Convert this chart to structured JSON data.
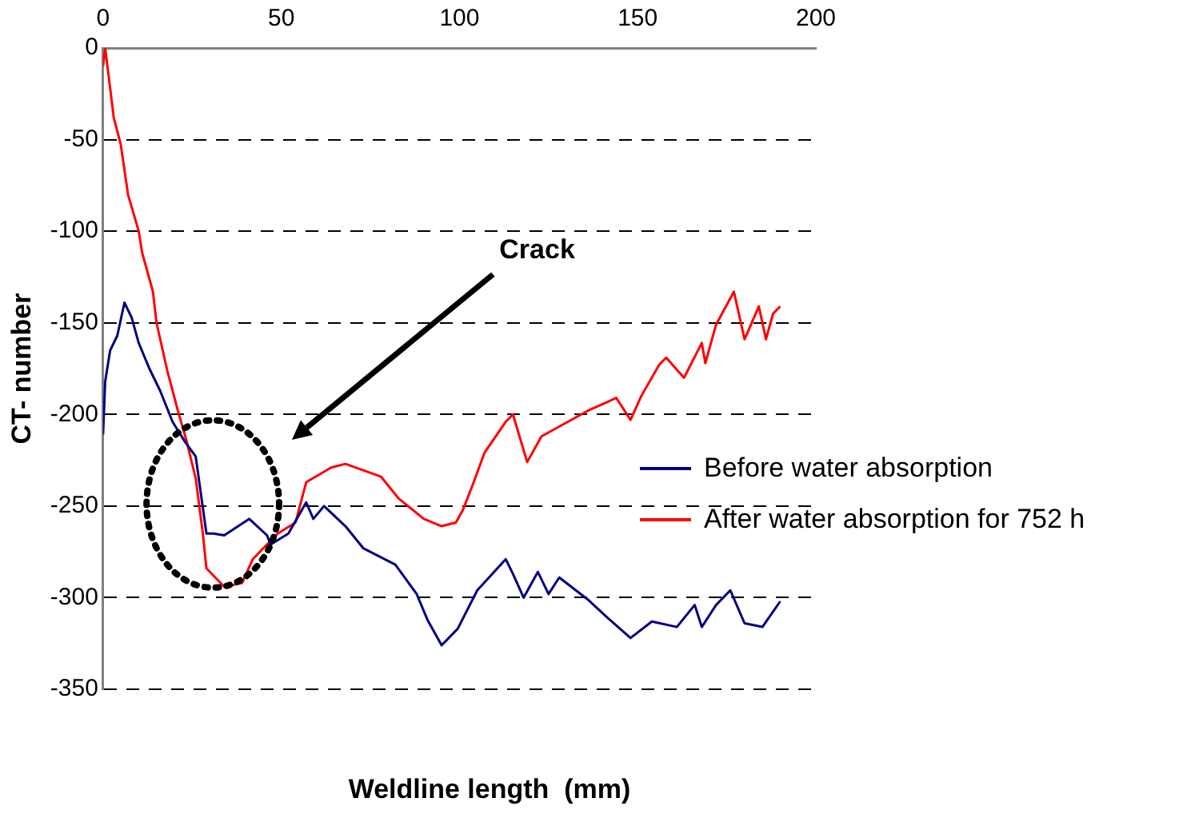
{
  "chart_data": {
    "type": "line",
    "xlabel": "Weldline length  (mm)",
    "ylabel": "CT- number",
    "xlim": [
      0,
      200
    ],
    "xticks": [
      0,
      50,
      100,
      150,
      200
    ],
    "ylim": [
      -350,
      0
    ],
    "yticks": [
      -350,
      -300,
      -250,
      -200,
      -150,
      -100,
      -50,
      0
    ],
    "grid": "y",
    "legend": "right",
    "marker": "none",
    "line_style": "solid",
    "annotations": [
      "Crack"
    ],
    "series": [
      {
        "name": "Before water absorption",
        "color": "#000080",
        "x": [
          0,
          0.6,
          2,
          4,
          6,
          8,
          10,
          13,
          16,
          19.5,
          23,
          26,
          29,
          31,
          34,
          41,
          46,
          47,
          52,
          57,
          59,
          62,
          68,
          73,
          82,
          88,
          91,
          95,
          99.5,
          105,
          113,
          115,
          118,
          122,
          125,
          128,
          136,
          141,
          148,
          154,
          161,
          166,
          168,
          172,
          176,
          180,
          185,
          190
        ],
        "values": [
          -211,
          -182,
          -165,
          -157,
          -139,
          -147,
          -161,
          -175,
          -187,
          -204,
          -215,
          -223,
          -265,
          -265,
          -266,
          -257,
          -266,
          -271,
          -265,
          -248,
          -257,
          -250,
          -261,
          -273,
          -282,
          -298,
          -312,
          -326,
          -317,
          -296,
          -279,
          -287,
          -300,
          -286,
          -298,
          -289,
          -301,
          -310,
          -322,
          -313,
          -316,
          -304,
          -316,
          -304,
          -296,
          -314,
          -316,
          -302
        ]
      },
      {
        "name": "After water absorption for 752 h",
        "color": "#ff0000",
        "x": [
          0,
          0.6,
          3,
          5,
          7,
          10,
          11,
          14,
          15,
          18,
          21,
          23.5,
          26,
          28,
          29,
          34,
          39,
          42,
          49,
          54,
          57,
          64,
          68,
          78,
          83,
          90,
          95,
          99,
          101,
          104,
          107,
          113,
          115,
          119,
          123,
          136,
          144,
          148,
          151,
          156,
          158,
          163,
          168,
          169,
          172,
          177,
          180,
          184,
          186,
          188,
          190
        ],
        "values": [
          -10,
          0,
          -38,
          -53,
          -80,
          -100,
          -112,
          -133,
          -150,
          -176,
          -198,
          -215,
          -235,
          -265,
          -284,
          -294,
          -292,
          -279,
          -265,
          -259,
          -237,
          -229,
          -227,
          -234,
          -246,
          -257,
          -261,
          -259,
          -252,
          -237,
          -221,
          -204,
          -200,
          -226,
          -212,
          -198,
          -191,
          -203,
          -190,
          -173,
          -169,
          -180,
          -161,
          -172,
          -151,
          -133,
          -159,
          -141,
          -159,
          -145,
          -141
        ]
      }
    ]
  }
}
